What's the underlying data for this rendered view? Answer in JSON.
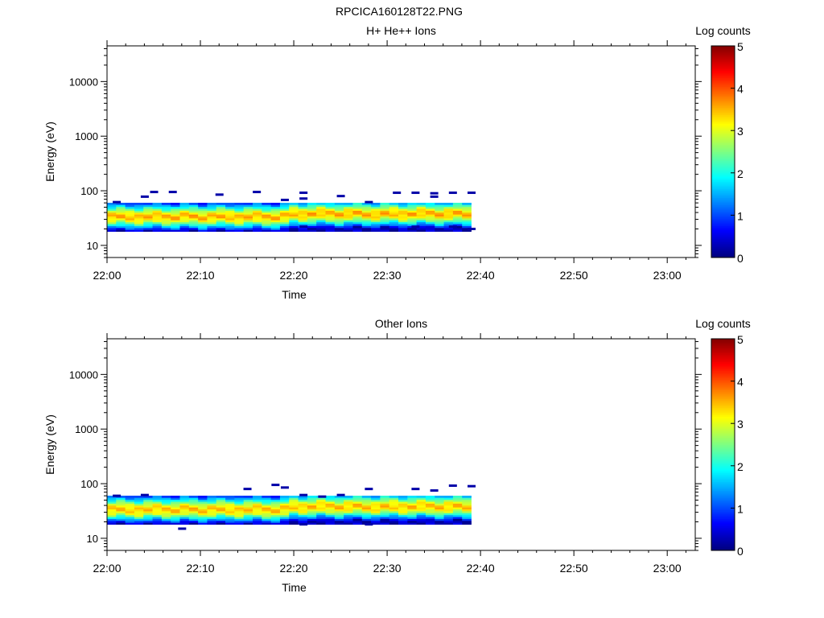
{
  "figure_title": "RPCICA160128T22.PNG",
  "chart_data": [
    {
      "type": "heatmap",
      "title": "H+ He++ Ions",
      "xlabel": "Time",
      "ylabel": "Energy (eV)",
      "x_ticks": [
        "22:00",
        "22:10",
        "22:20",
        "22:30",
        "22:40",
        "22:50",
        "23:00"
      ],
      "xlim": [
        "22:00",
        "23:03"
      ],
      "y_scale": "log",
      "y_ticks": [
        "10",
        "100",
        "1000",
        "10000"
      ],
      "ylim": [
        6,
        45000
      ],
      "colorbar": {
        "label": "Log counts",
        "ticks": [
          "0",
          "1",
          "2",
          "3",
          "4",
          "5"
        ],
        "range": [
          0,
          5
        ],
        "colormap": "jet"
      },
      "data_time_range": [
        "22:00",
        "22:39"
      ],
      "energy_profile": {
        "energies": [
          18,
          20,
          23,
          26,
          30,
          34,
          39,
          45,
          52,
          60
        ],
        "log_counts": [
          0.3,
          1.2,
          2.0,
          2.8,
          3.4,
          3.5,
          3.0,
          2.2,
          1.4,
          0.6
        ]
      },
      "sparse_low_counts": [
        {
          "time": "22:01",
          "energy": 62
        },
        {
          "time": "22:04",
          "energy": 78
        },
        {
          "time": "22:05",
          "energy": 95
        },
        {
          "time": "22:07",
          "energy": 95
        },
        {
          "time": "22:12",
          "energy": 85
        },
        {
          "time": "22:16",
          "energy": 95
        },
        {
          "time": "22:19",
          "energy": 68
        },
        {
          "time": "22:21",
          "energy": 92
        },
        {
          "time": "22:21",
          "energy": 72
        },
        {
          "time": "22:25",
          "energy": 80
        },
        {
          "time": "22:28",
          "energy": 62
        },
        {
          "time": "22:31",
          "energy": 92
        },
        {
          "time": "22:33",
          "energy": 92
        },
        {
          "time": "22:35",
          "energy": 90
        },
        {
          "time": "22:35",
          "energy": 78
        },
        {
          "time": "22:37",
          "energy": 92
        },
        {
          "time": "22:39",
          "energy": 92
        },
        {
          "time": "22:39",
          "energy": 20
        },
        {
          "time": "22:21",
          "energy": 22
        },
        {
          "time": "22:33",
          "energy": 22
        },
        {
          "time": "22:37",
          "energy": 22
        }
      ]
    },
    {
      "type": "heatmap",
      "title": "Other Ions",
      "xlabel": "Time",
      "ylabel": "Energy (eV)",
      "x_ticks": [
        "22:00",
        "22:10",
        "22:20",
        "22:30",
        "22:40",
        "22:50",
        "23:00"
      ],
      "xlim": [
        "22:00",
        "23:03"
      ],
      "y_scale": "log",
      "y_ticks": [
        "10",
        "100",
        "1000",
        "10000"
      ],
      "ylim": [
        6,
        45000
      ],
      "colorbar": {
        "label": "Log counts",
        "ticks": [
          "0",
          "1",
          "2",
          "3",
          "4",
          "5"
        ],
        "range": [
          0,
          5
        ],
        "colormap": "jet"
      },
      "data_time_range": [
        "22:00",
        "22:39"
      ],
      "energy_profile": {
        "energies": [
          18,
          20,
          23,
          26,
          30,
          34,
          39,
          45,
          52,
          60
        ],
        "log_counts": [
          0.3,
          1.1,
          1.9,
          2.8,
          3.3,
          3.4,
          3.0,
          2.2,
          1.4,
          0.6
        ]
      },
      "sparse_low_counts": [
        {
          "time": "22:01",
          "energy": 60
        },
        {
          "time": "22:04",
          "energy": 62
        },
        {
          "time": "22:08",
          "energy": 15
        },
        {
          "time": "22:15",
          "energy": 80
        },
        {
          "time": "22:18",
          "energy": 95
        },
        {
          "time": "22:19",
          "energy": 85
        },
        {
          "time": "22:21",
          "energy": 62
        },
        {
          "time": "22:21",
          "energy": 18
        },
        {
          "time": "22:23",
          "energy": 58
        },
        {
          "time": "22:25",
          "energy": 62
        },
        {
          "time": "22:28",
          "energy": 80
        },
        {
          "time": "22:28",
          "energy": 18
        },
        {
          "time": "22:33",
          "energy": 80
        },
        {
          "time": "22:35",
          "energy": 75
        },
        {
          "time": "22:37",
          "energy": 92
        },
        {
          "time": "22:39",
          "energy": 90
        }
      ]
    }
  ]
}
